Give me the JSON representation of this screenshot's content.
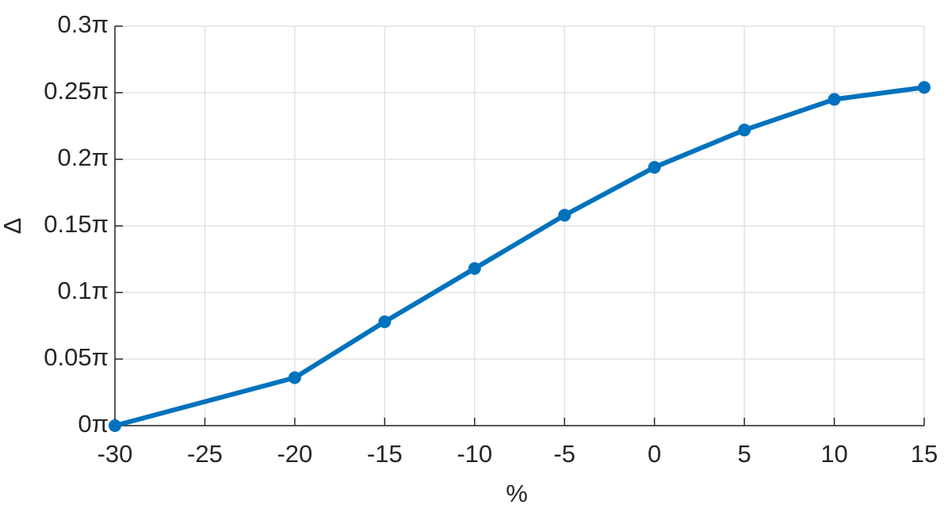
{
  "chart_data": {
    "type": "line",
    "xlabel": "%",
    "ylabel": "Δ",
    "x": [
      -30,
      -20,
      -15,
      -10,
      -5,
      0,
      5,
      10,
      15
    ],
    "series": [
      {
        "color": "#0072bd",
        "values": [
          0,
          0.036,
          0.078,
          0.118,
          0.158,
          0.194,
          0.222,
          0.245,
          0.254
        ]
      }
    ],
    "xlim": [
      -30,
      15
    ],
    "xticks": [
      -30,
      -25,
      -20,
      -15,
      -10,
      -5,
      0,
      5,
      10,
      15
    ],
    "ylim": [
      0,
      0.3
    ],
    "yticks": [
      {
        "value": 0,
        "label": "0π"
      },
      {
        "value": 0.05,
        "label": "0.05π"
      },
      {
        "value": 0.1,
        "label": "0.1π"
      },
      {
        "value": 0.15,
        "label": "0.15π"
      },
      {
        "value": 0.2,
        "label": "0.2π"
      },
      {
        "value": 0.25,
        "label": "0.25π"
      },
      {
        "value": 0.3,
        "label": "0.3π"
      }
    ],
    "grid": true
  }
}
